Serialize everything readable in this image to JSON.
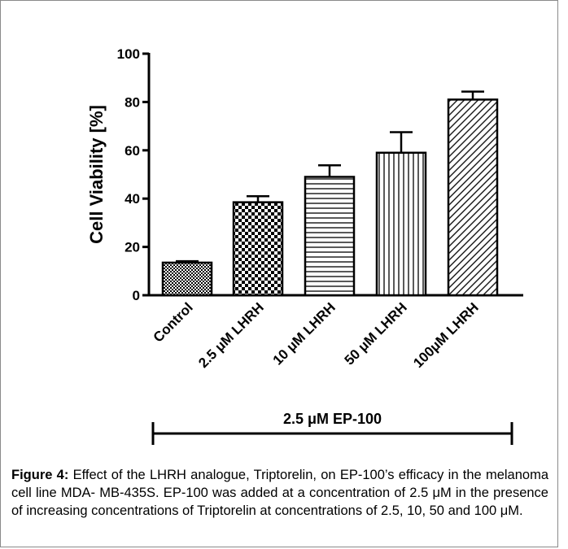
{
  "chart_data": {
    "type": "bar",
    "categories": [
      "Control",
      "2.5 μM LHRH",
      "10 μM LHRH",
      "50 μM LHRH",
      "100μM LHRH"
    ],
    "values": [
      13.5,
      38.5,
      49,
      59,
      81
    ],
    "errors": [
      0.6,
      2.5,
      4.8,
      8.5,
      3.3
    ],
    "patterns": [
      "checker-fine",
      "checker-coarse",
      "horizontal-lines",
      "vertical-lines",
      "diagonal-lines"
    ],
    "ylabel": "Cell Viability [%]",
    "ylim": [
      0,
      100
    ],
    "yticks": [
      0,
      20,
      40,
      60,
      80,
      100
    ],
    "group_bracket_label": "2.5 μM EP-100",
    "grid": false
  },
  "caption": {
    "label": "Figure 4:",
    "text": " Effect of the LHRH analogue, Triptorelin, on EP-100’s efficacy in the melanoma cell line MDA- MB-435S. EP-100 was added at a concentration of 2.5 μM in the presence of increasing concentrations of Triptorelin at concentrations of 2.5, 10, 50 and 100 μM."
  }
}
